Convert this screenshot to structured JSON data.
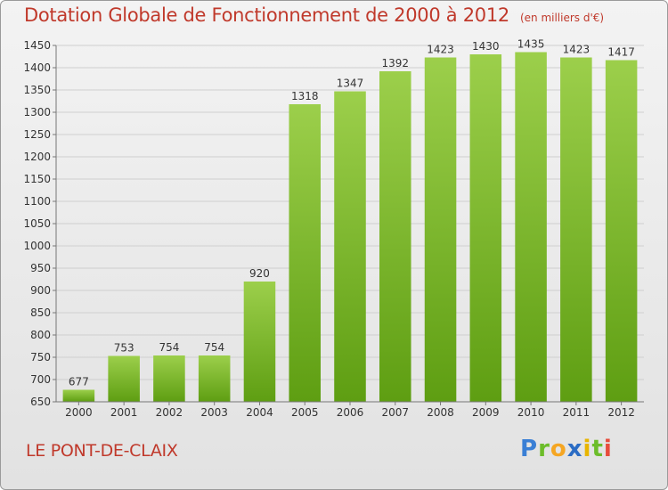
{
  "header": {
    "title": "Dotation Globale de Fonctionnement de 2000 à 2012",
    "unit": "(en milliers d'€)"
  },
  "footer": {
    "place": "LE PONT-DE-CLAIX",
    "logo": "Proxiti"
  },
  "colors": {
    "bar_light": "#9ccf4b",
    "bar_dark": "#5e9e12",
    "title": "#c0392b"
  },
  "chart_data": {
    "type": "bar",
    "title": "Dotation Globale de Fonctionnement de 2000 à 2012",
    "categories": [
      "2000",
      "2001",
      "2002",
      "2003",
      "2004",
      "2005",
      "2006",
      "2007",
      "2008",
      "2009",
      "2010",
      "2011",
      "2012"
    ],
    "values": [
      677,
      753,
      754,
      754,
      920,
      1318,
      1347,
      1392,
      1423,
      1430,
      1435,
      1423,
      1417
    ],
    "ylim": [
      650,
      1450
    ],
    "yticks": [
      650,
      700,
      750,
      800,
      850,
      900,
      950,
      1000,
      1050,
      1100,
      1150,
      1200,
      1250,
      1300,
      1350,
      1400,
      1450
    ],
    "grid": true,
    "legend": "none"
  }
}
